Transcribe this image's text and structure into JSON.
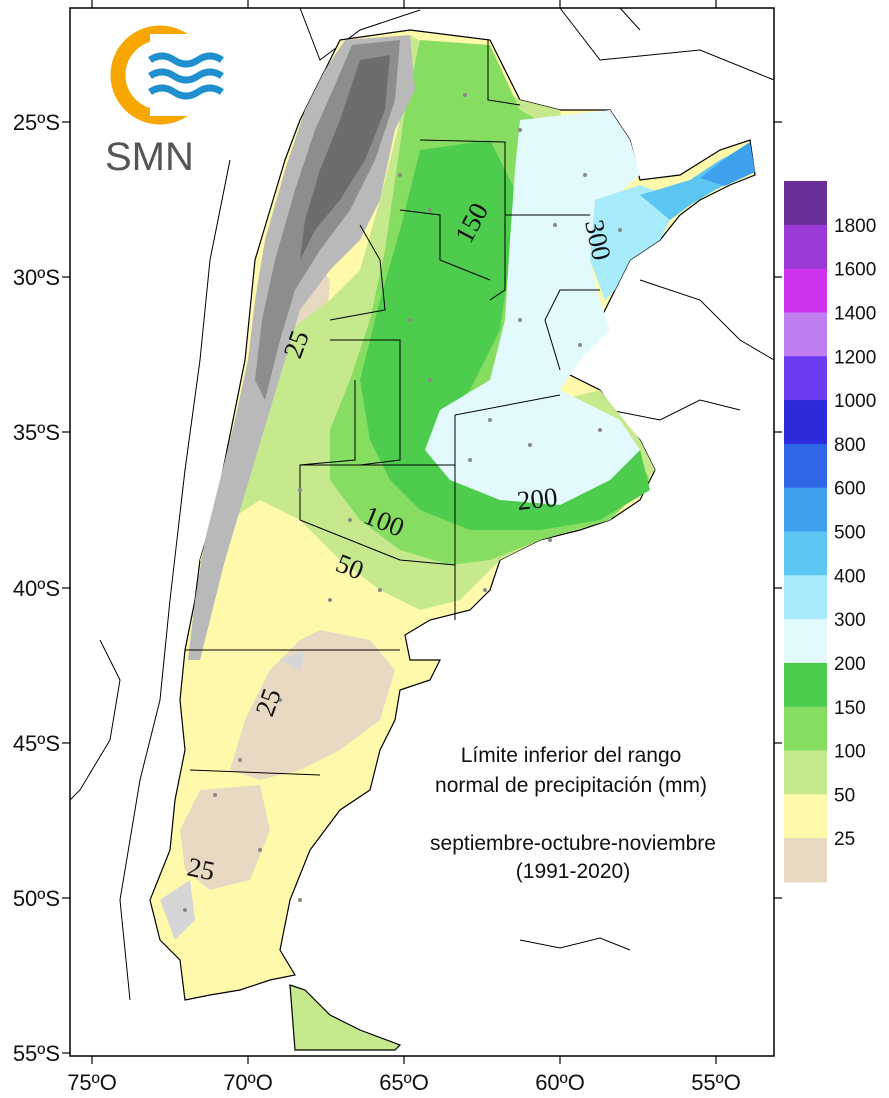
{
  "logo": {
    "text": "SMN",
    "ring_color": "#f7a600",
    "wave_color": "#1f8fd0"
  },
  "map": {
    "y_ticks": [
      "25ºS",
      "30ºS",
      "35ºS",
      "40ºS",
      "45ºS",
      "50ºS",
      "55ºS"
    ],
    "x_ticks": [
      "75ºO",
      "70ºO",
      "65ºO",
      "60ºO",
      "55ºO"
    ],
    "contours": [
      {
        "text": "150",
        "rotate": -62
      },
      {
        "text": "300",
        "rotate": 78
      },
      {
        "text": "25",
        "rotate": -70
      },
      {
        "text": "200",
        "rotate": -6
      },
      {
        "text": "100",
        "rotate": 22
      },
      {
        "text": "50",
        "rotate": 22
      },
      {
        "text": "25",
        "rotate": -70
      },
      {
        "text": "25",
        "rotate": 12
      }
    ],
    "note": {
      "line1": "Límite inferior del rango",
      "line2": "normal de precipitación (mm)",
      "line3": "septiembre-octubre-noviembre",
      "line4": "(1991-2020)"
    }
  },
  "legend": {
    "items": [
      {
        "label": "1800",
        "color": "#6a2f99"
      },
      {
        "label": "1600",
        "color": "#9b3ad6"
      },
      {
        "label": "1400",
        "color": "#cc33ee"
      },
      {
        "label": "1200",
        "color": "#c07df0"
      },
      {
        "label": "1000",
        "color": "#6a3ef0"
      },
      {
        "label": "800",
        "color": "#2d2adb"
      },
      {
        "label": "600",
        "color": "#2f66e8"
      },
      {
        "label": "500",
        "color": "#3fa1ee"
      },
      {
        "label": "400",
        "color": "#5cc6f3"
      },
      {
        "label": "300",
        "color": "#a8ebfa"
      },
      {
        "label": "200",
        "color": "#e3fafd"
      },
      {
        "label": "150",
        "color": "#4dcc4d"
      },
      {
        "label": "100",
        "color": "#87dd61"
      },
      {
        "label": "50",
        "color": "#c6e98e"
      },
      {
        "label": "25",
        "color": "#fffaab"
      },
      {
        "label": "",
        "color": "#e8d9c2"
      }
    ]
  }
}
